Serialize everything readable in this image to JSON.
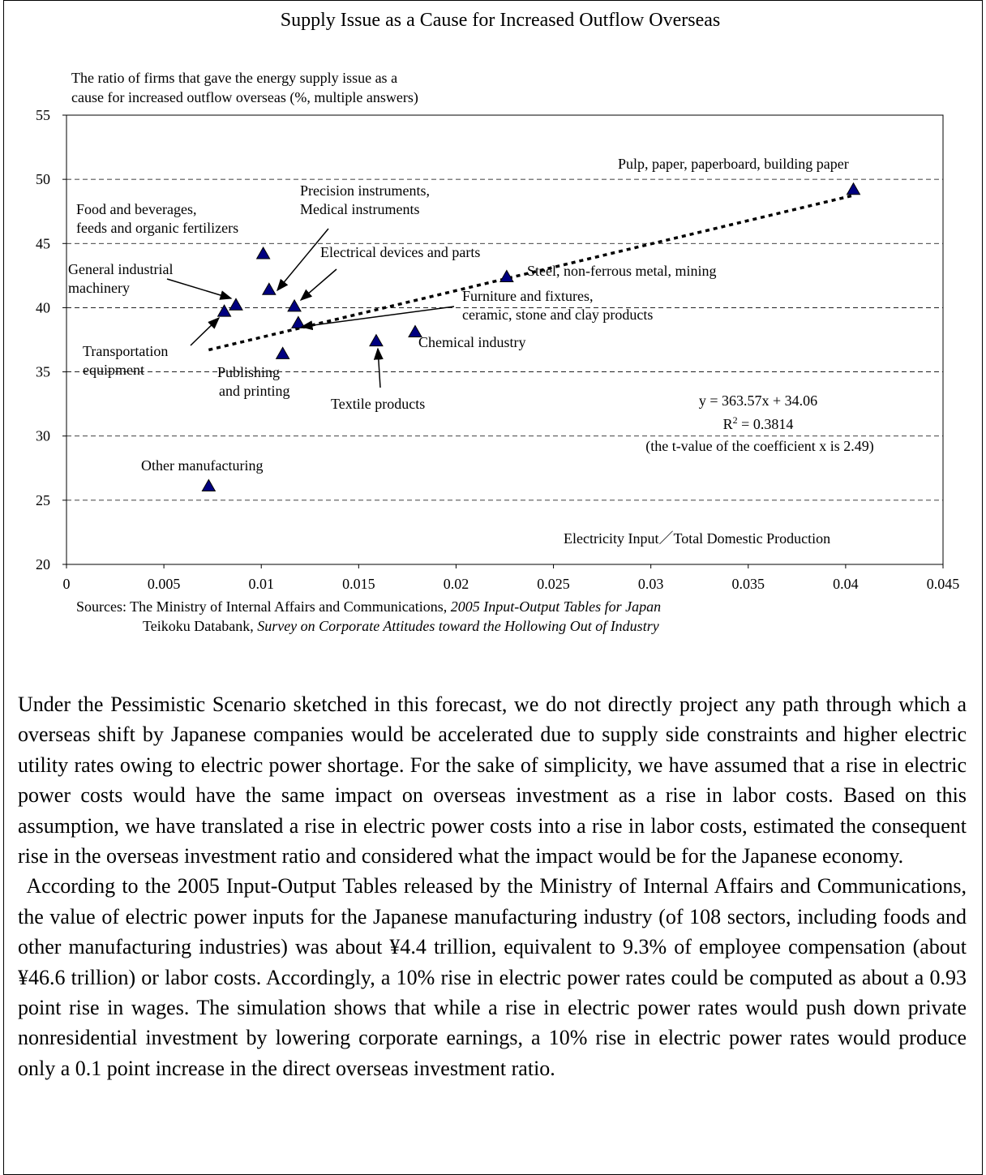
{
  "chart_data": {
    "type": "scatter",
    "title": "Supply Issue as a Cause for Increased Outflow Overseas",
    "y_label": [
      "The ratio of firms that gave the energy supply issue as a",
      "cause for increased outflow overseas (%, multiple answers)"
    ],
    "x_label": "Electricity Input／Total Domestic Production",
    "xlim": [
      0,
      0.045
    ],
    "xticks": [
      0,
      0.005,
      0.01,
      0.015,
      0.02,
      0.025,
      0.03,
      0.035,
      0.04,
      0.045
    ],
    "ylim": [
      20,
      55
    ],
    "yticks": [
      20,
      25,
      30,
      35,
      40,
      45,
      50,
      55
    ],
    "grid": true,
    "color": "#000080",
    "categories": [
      [
        "Pulp, paper, paperboard, building paper"
      ],
      [
        "Steel, non-ferrous metal, mining"
      ],
      [
        "Food and beverages,",
        "feeds and organic fertilizers"
      ],
      [
        "Precision instruments,",
        "Medical instruments"
      ],
      [
        "Electrical devices and parts"
      ],
      [
        "Furniture and fixtures,",
        "ceramic, stone and clay products"
      ],
      [
        "General industrial",
        "machinery"
      ],
      [
        "Transportation",
        "equipment"
      ],
      [
        "Publishing",
        "and printing"
      ],
      [
        "Textile products"
      ],
      [
        "Chemical industry"
      ],
      [
        "Other manufacturing"
      ]
    ],
    "x": [
      0.0404,
      0.0226,
      0.0101,
      0.0104,
      0.0117,
      0.0119,
      0.0087,
      0.0081,
      0.0111,
      0.0159,
      0.0179,
      0.0073
    ],
    "values": [
      49.2,
      42.4,
      44.2,
      41.4,
      40.1,
      38.8,
      40.2,
      39.7,
      36.4,
      37.4,
      38.1,
      26.1
    ],
    "trendline": {
      "x": [
        0.0073,
        0.0404
      ],
      "values": [
        36.71,
        48.75
      ]
    },
    "regression": {
      "equation": "y = 363.57x + 34.06",
      "r_squared": [
        "R",
        "2",
        " = 0.3814"
      ],
      "note": "(the t-value of the coefficient x is 2.49)"
    },
    "sources": [
      [
        "Sources: The Ministry of Internal Affairs and Communications, ",
        "2005 Input-Output Tables for Japan"
      ],
      [
        "Teikoku Databank, ",
        "Survey on Corporate Attitudes toward the Hollowing Out of Industry"
      ]
    ]
  },
  "paragraphs": [
    "Under the Pessimistic Scenario sketched in this forecast, we do not directly project any path through which a overseas shift by Japanese companies would be accelerated due to supply side constraints and higher electric utility rates owing to electric power shortage. For the sake of simplicity, we have assumed that a rise in electric power costs would have the same impact on overseas investment as a rise in labor costs. Based on this assumption, we have translated a rise in electric power costs into a rise in labor costs, estimated the consequent rise in the overseas investment ratio and considered what the impact would be for the Japanese economy.",
    "According to the 2005 Input-Output Tables released by the Ministry of Internal Affairs and Communications, the value of electric power inputs for the Japanese manufacturing industry (of 108 sectors, including foods and other manufacturing industries) was about ¥4.4 trillion, equivalent to 9.3% of employee compensation (about ¥46.6 trillion) or labor costs. Accordingly, a 10% rise in electric power rates could be computed as about a 0.93 point rise in wages. The simulation shows that while a rise in electric power rates would push down private nonresidential investment by lowering corporate earnings, a 10% rise in electric power rates would produce only a 0.1 point increase in the direct overseas investment ratio."
  ]
}
